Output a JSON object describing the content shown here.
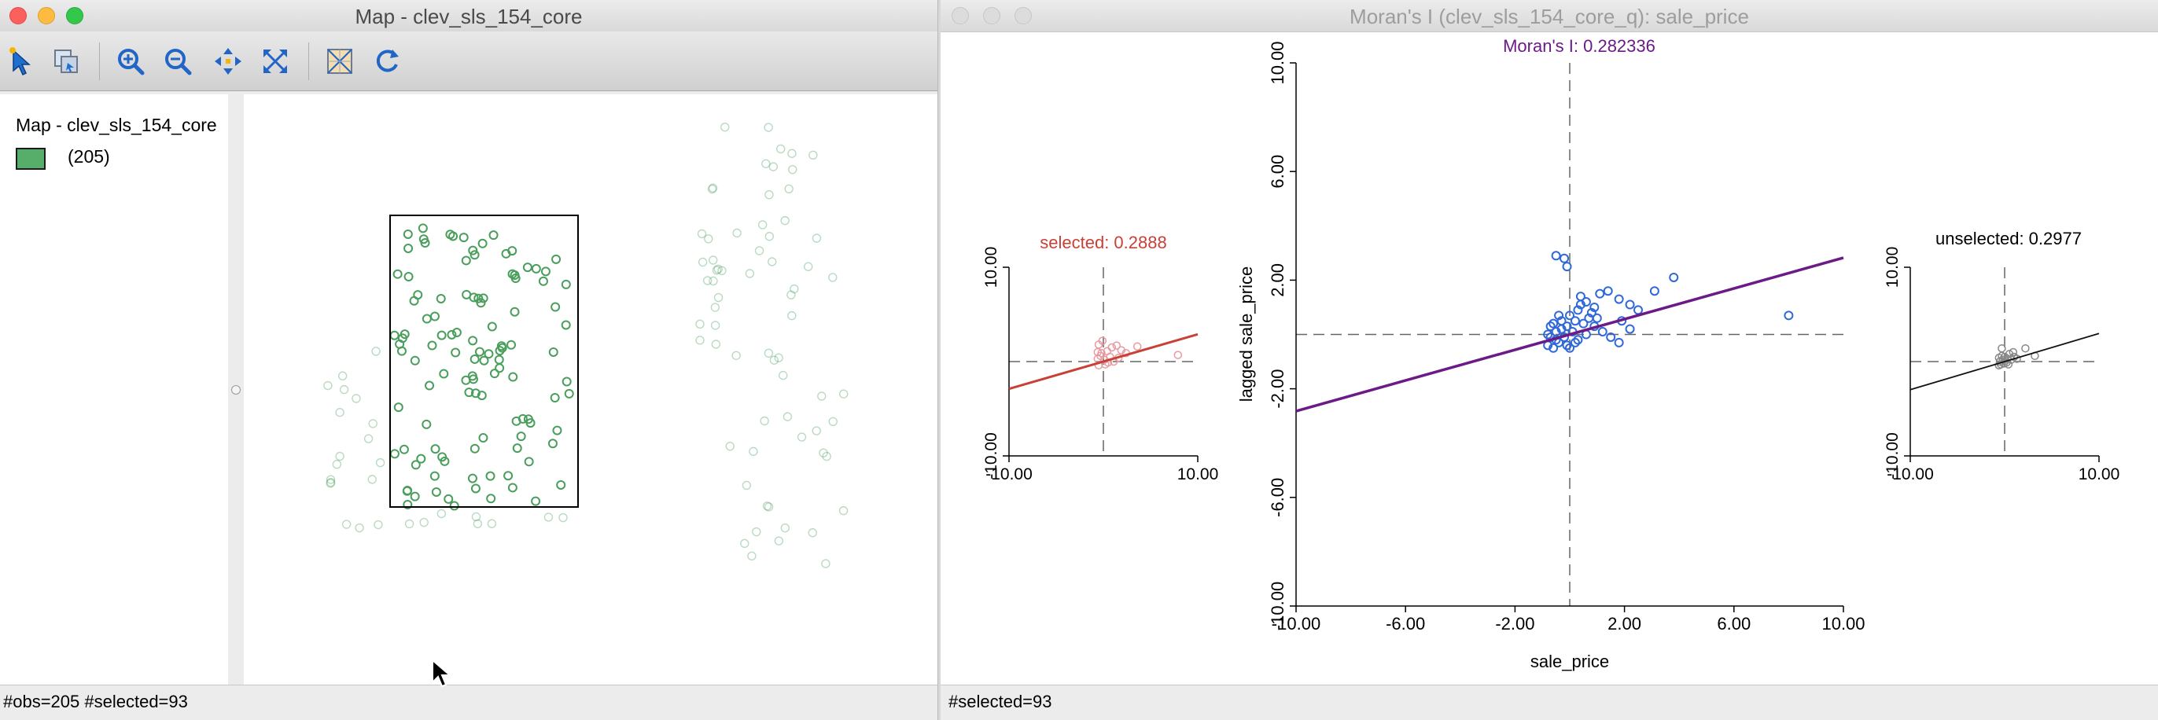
{
  "map_window": {
    "title": "Map - clev_sls_154_core",
    "toolbar": {
      "tools": [
        {
          "name": "select-arrow-icon"
        },
        {
          "name": "selection-shape-icon"
        },
        {
          "name": "zoom-in-icon"
        },
        {
          "name": "zoom-out-icon"
        },
        {
          "name": "pan-icon"
        },
        {
          "name": "full-extent-icon"
        },
        {
          "name": "map-layer-icon"
        },
        {
          "name": "refresh-icon"
        }
      ]
    },
    "legend": {
      "title": "Map - clev_sls_154_core",
      "swatch_color": "#57ad6a",
      "count_label": "(205)"
    },
    "status": "#obs=205 #selected=93"
  },
  "moran_window": {
    "title": "Moran's I (clev_sls_154_core_q): sale_price",
    "status": "#selected=93",
    "main": {
      "title": "Moran's I: 0.282336",
      "xlabel": "sale_price",
      "ylabel": "lagged sale_price",
      "x_ticks": [
        "-10.00",
        "-6.00",
        "-2.00",
        "2.00",
        "6.00",
        "10.00"
      ],
      "y_ticks": [
        "-10.00",
        "-6.00",
        "-2.00",
        "2.00",
        "6.00",
        "10.00"
      ]
    },
    "selected": {
      "title": "selected: 0.2888",
      "x_ticks": [
        "-10.00",
        "10.00"
      ],
      "y_ticks": [
        "-10.00",
        "10.00"
      ]
    },
    "unselected": {
      "title": "unselected: 0.2977",
      "x_ticks": [
        "-10.00",
        "10.00"
      ],
      "y_ticks": [
        "-10.00",
        "10.00"
      ]
    }
  },
  "colors": {
    "regression_main": "#6b1a87",
    "regression_selected": "#c94136",
    "regression_unselected": "#111111",
    "point_selected": "#2f68d8",
    "point_selected_sub": "#e99aa0",
    "point_unselected_sub": "#888888",
    "map_point": "#4a9e5c"
  },
  "chart_data": [
    {
      "type": "scatter",
      "title": "Moran's I: 0.282336",
      "xlabel": "sale_price",
      "ylabel": "lagged sale_price",
      "xlim": [
        -10,
        10
      ],
      "ylim": [
        -10,
        10
      ],
      "slope": 0.282336,
      "intercept": 0.0,
      "points": [
        [
          -0.5,
          2.9
        ],
        [
          -0.2,
          2.8
        ],
        [
          -0.1,
          2.5
        ],
        [
          0.4,
          1.4
        ],
        [
          0.6,
          1.2
        ],
        [
          0.9,
          1.0
        ],
        [
          1.1,
          1.5
        ],
        [
          1.4,
          1.6
        ],
        [
          1.8,
          1.3
        ],
        [
          2.2,
          1.1
        ],
        [
          2.5,
          0.9
        ],
        [
          3.1,
          1.6
        ],
        [
          3.8,
          2.1
        ],
        [
          8.0,
          0.7
        ],
        [
          1.9,
          0.5
        ],
        [
          2.2,
          0.2
        ],
        [
          1.5,
          -0.1
        ],
        [
          1.8,
          -0.3
        ],
        [
          0.7,
          0.6
        ],
        [
          0.9,
          0.3
        ],
        [
          1.2,
          0.1
        ],
        [
          0.3,
          0.9
        ],
        [
          0.0,
          0.7
        ],
        [
          -0.3,
          0.5
        ],
        [
          -0.6,
          0.4
        ],
        [
          -0.5,
          0.1
        ],
        [
          -0.7,
          -0.1
        ],
        [
          -0.4,
          -0.3
        ],
        [
          -0.8,
          -0.4
        ],
        [
          -0.6,
          -0.5
        ],
        [
          -0.2,
          -0.1
        ],
        [
          0.1,
          0.1
        ],
        [
          0.3,
          -0.2
        ],
        [
          0.5,
          0.4
        ],
        [
          -0.3,
          0.2
        ],
        [
          -0.1,
          0.3
        ],
        [
          0.2,
          0.5
        ],
        [
          0.6,
          0.0
        ],
        [
          -0.5,
          -0.2
        ],
        [
          -0.8,
          0.0
        ],
        [
          0.8,
          0.8
        ],
        [
          1.0,
          0.6
        ],
        [
          0.4,
          1.1
        ],
        [
          -0.4,
          0.7
        ],
        [
          -0.1,
          -0.4
        ],
        [
          -0.7,
          0.3
        ],
        [
          0.0,
          -0.5
        ],
        [
          0.2,
          -0.3
        ]
      ]
    },
    {
      "type": "scatter",
      "title": "selected: 0.2888",
      "xlim": [
        -10,
        10
      ],
      "ylim": [
        -10,
        10
      ],
      "slope": 0.2888,
      "intercept": 0.0,
      "points": [
        [
          -0.5,
          1.8
        ],
        [
          -0.1,
          2.2
        ],
        [
          0.4,
          1.1
        ],
        [
          0.9,
          1.5
        ],
        [
          1.4,
          1.7
        ],
        [
          1.9,
          1.2
        ],
        [
          2.4,
          0.9
        ],
        [
          3.6,
          1.6
        ],
        [
          7.9,
          0.7
        ],
        [
          -0.6,
          0.3
        ],
        [
          -0.3,
          0.6
        ],
        [
          0.1,
          0.2
        ],
        [
          0.5,
          -0.1
        ],
        [
          -0.5,
          -0.4
        ],
        [
          -0.2,
          0.9
        ],
        [
          0.7,
          0.5
        ],
        [
          1.1,
          0.0
        ],
        [
          -0.6,
          1.0
        ],
        [
          0.2,
          -0.3
        ],
        [
          1.6,
          0.4
        ]
      ]
    },
    {
      "type": "scatter",
      "title": "unselected: 0.2977",
      "xlim": [
        -10,
        10
      ],
      "ylim": [
        -10,
        10
      ],
      "slope": 0.2977,
      "intercept": 0.0,
      "points": [
        [
          -0.6,
          0.4
        ],
        [
          -0.5,
          0.0
        ],
        [
          -0.4,
          -0.3
        ],
        [
          -0.3,
          0.6
        ],
        [
          -0.2,
          0.2
        ],
        [
          -0.1,
          -0.2
        ],
        [
          0.0,
          0.5
        ],
        [
          0.1,
          0.1
        ],
        [
          0.2,
          -0.1
        ],
        [
          0.3,
          0.3
        ],
        [
          0.5,
          0.8
        ],
        [
          0.7,
          0.2
        ],
        [
          1.0,
          0.5
        ],
        [
          1.3,
          0.3
        ],
        [
          2.2,
          1.4
        ],
        [
          3.2,
          0.6
        ],
        [
          -0.6,
          -0.4
        ],
        [
          -0.3,
          1.4
        ],
        [
          0.4,
          -0.3
        ],
        [
          0.9,
          1.0
        ]
      ]
    }
  ]
}
